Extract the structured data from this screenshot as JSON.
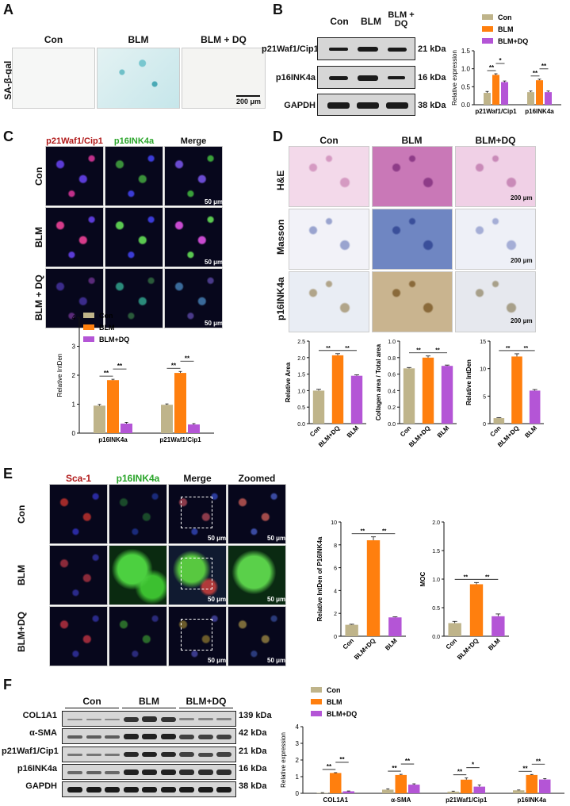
{
  "panels": {
    "A": "A",
    "B": "B",
    "C": "C",
    "D": "D",
    "E": "E",
    "F": "F"
  },
  "a": {
    "cols": [
      "Con",
      "BLM",
      "BLM + DQ"
    ],
    "row_label": "SA-β-gal",
    "scale": "200 μm"
  },
  "b": {
    "cols": [
      "Con",
      "BLM",
      "BLM + DQ"
    ],
    "proteins": [
      "p21Waf1/Cip1",
      "p16INK4a",
      "GAPDH"
    ],
    "kda": [
      "21 kDa",
      "16 kDa",
      "38 kDa"
    ]
  },
  "c": {
    "cols": [
      "p21Waf1/Cip1",
      "p16INK4a",
      "Merge"
    ],
    "rows": [
      "Con",
      "BLM",
      "BLM + DQ"
    ],
    "scale": "50 μm"
  },
  "d": {
    "cols": [
      "Con",
      "BLM",
      "BLM+DQ"
    ],
    "rows": [
      "H&E",
      "Masson",
      "p16INK4a"
    ],
    "scale": "200 μm"
  },
  "e": {
    "cols": [
      "Sca-1",
      "p16INK4a",
      "Merge",
      "Zoomed"
    ],
    "rows": [
      "Con",
      "BLM",
      "BLM+DQ"
    ],
    "scale": "50 μm"
  },
  "f": {
    "groups": [
      "Con",
      "BLM",
      "BLM+DQ"
    ],
    "proteins": [
      "COL1A1",
      "α-SMA",
      "p21Waf1/Cip1",
      "p16INK4a",
      "GAPDH"
    ],
    "kda": [
      "139 kDa",
      "42 kDa",
      "21 kDa",
      "16 kDa",
      "38 kDa"
    ]
  },
  "colors": {
    "con": "#bfb48a",
    "blm": "#ff7f0e",
    "dq": "#b455d6"
  },
  "chart_data": [
    {
      "id": "B-bar",
      "type": "bar",
      "ylabel": "Relative expression",
      "ylim": [
        0,
        1.5
      ],
      "yticks": [
        "0.0",
        "0.5",
        "1.0",
        "1.5"
      ],
      "categories": [
        "p21Waf1/Cip1",
        "p16INK4a"
      ],
      "series": [
        {
          "name": "Con",
          "values": [
            0.33,
            0.35
          ],
          "errors": [
            0.04,
            0.03
          ]
        },
        {
          "name": "BLM",
          "values": [
            0.83,
            0.68
          ],
          "errors": [
            0.03,
            0.03
          ]
        },
        {
          "name": "BLM+DQ",
          "values": [
            0.63,
            0.35
          ],
          "errors": [
            0.03,
            0.03
          ]
        }
      ],
      "significance": [
        "**",
        "*",
        "**",
        "**"
      ],
      "legend": "top-right"
    },
    {
      "id": "C-bar",
      "type": "bar",
      "ylabel": "Relative IntDen",
      "ylim": [
        0,
        4
      ],
      "yticks": [
        "0",
        "1",
        "2",
        "3",
        "4"
      ],
      "categories": [
        "p16INK4a",
        "p21Waf1/Cip1"
      ],
      "series": [
        {
          "name": "Con",
          "values": [
            0.95,
            0.98
          ],
          "errors": [
            0.04,
            0.03
          ]
        },
        {
          "name": "BLM",
          "values": [
            1.83,
            2.08
          ],
          "errors": [
            0.03,
            0.05
          ]
        },
        {
          "name": "BLM+DQ",
          "values": [
            0.33,
            0.3
          ],
          "errors": [
            0.04,
            0.03
          ]
        }
      ],
      "significance": [
        "**",
        "**",
        "**",
        "**"
      ],
      "legend": "top-left"
    },
    {
      "id": "D-bar1",
      "type": "bar",
      "ylabel": "Relative Area",
      "ylim": [
        0,
        2.5
      ],
      "yticks": [
        "0.0",
        "0.5",
        "1.0",
        "1.5",
        "2.0",
        "2.5"
      ],
      "categories": [
        "Con",
        "BLM+DQ",
        "BLM"
      ],
      "values": [
        1.0,
        2.07,
        1.45
      ],
      "errors": [
        0.04,
        0.05,
        0.03
      ],
      "significance": [
        "**",
        "**"
      ]
    },
    {
      "id": "D-bar2",
      "type": "bar",
      "ylabel": "Collagen area / Total area",
      "ylim": [
        0,
        1.0
      ],
      "yticks": [
        "0.0",
        "0.2",
        "0.4",
        "0.6",
        "0.8",
        "1.0"
      ],
      "categories": [
        "Con",
        "BLM+DQ",
        "BLM"
      ],
      "values": [
        0.67,
        0.8,
        0.7
      ],
      "errors": [
        0.01,
        0.02,
        0.01
      ],
      "significance": [
        "**",
        "**"
      ]
    },
    {
      "id": "D-bar3",
      "type": "bar",
      "ylabel": "Relative IntDen",
      "ylim": [
        0,
        15
      ],
      "yticks": [
        "0",
        "5",
        "10",
        "15"
      ],
      "categories": [
        "Con",
        "BLM+DQ",
        "BLM"
      ],
      "values": [
        1.0,
        12.2,
        6.0
      ],
      "errors": [
        0.1,
        0.5,
        0.2
      ],
      "significance": [
        "**",
        "**"
      ]
    },
    {
      "id": "E-bar1",
      "type": "bar",
      "ylabel": "Relative IntDen of P16INK4a",
      "ylim": [
        0,
        10
      ],
      "yticks": [
        "0",
        "2",
        "4",
        "6",
        "8",
        "10"
      ],
      "categories": [
        "Con",
        "BLM+DQ",
        "BLM"
      ],
      "values": [
        1.0,
        8.4,
        1.65
      ],
      "errors": [
        0.05,
        0.3,
        0.05
      ],
      "significance": [
        "**",
        "**"
      ]
    },
    {
      "id": "E-bar2",
      "type": "bar",
      "ylabel": "MOC",
      "ylim": [
        0,
        2.0
      ],
      "yticks": [
        "0.0",
        "0.5",
        "1.0",
        "1.5",
        "2.0"
      ],
      "categories": [
        "Con",
        "BLM+DQ",
        "BLM"
      ],
      "values": [
        0.23,
        0.91,
        0.35
      ],
      "errors": [
        0.03,
        0.03,
        0.04
      ],
      "significance": [
        "**",
        "**"
      ]
    },
    {
      "id": "F-bar",
      "type": "bar",
      "ylabel": "Relative expression",
      "ylim": [
        0,
        4
      ],
      "yticks": [
        "0",
        "1",
        "2",
        "3",
        "4"
      ],
      "categories": [
        "COL1A1",
        "α-SMA",
        "p21Waf1/Cip1",
        "p16INK4a"
      ],
      "series": [
        {
          "name": "Con",
          "values": [
            0.03,
            0.22,
            0.1,
            0.18
          ],
          "errors": [
            0.01,
            0.05,
            0.03,
            0.02
          ]
        },
        {
          "name": "BLM",
          "values": [
            1.22,
            1.1,
            0.82,
            1.1
          ],
          "errors": [
            0.02,
            0.04,
            0.1,
            0.03
          ]
        },
        {
          "name": "BLM+DQ",
          "values": [
            0.12,
            0.52,
            0.4,
            0.83
          ],
          "errors": [
            0.02,
            0.05,
            0.1,
            0.05
          ]
        }
      ],
      "significance": [
        "**",
        "**",
        "**",
        "**",
        "**",
        "*",
        "**",
        "**"
      ],
      "legend": "top-left"
    }
  ]
}
